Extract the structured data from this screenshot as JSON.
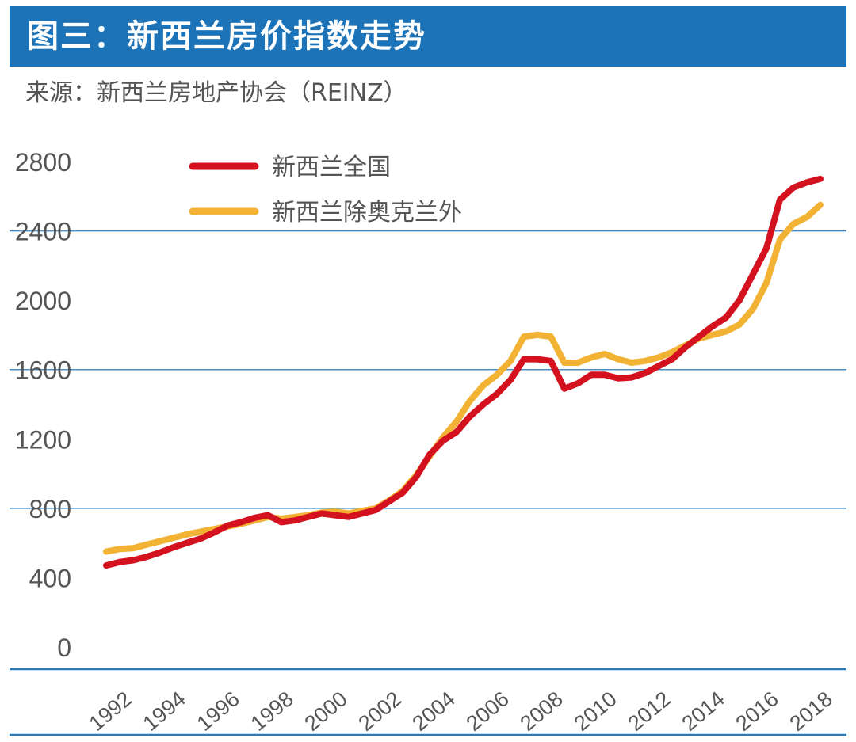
{
  "header": {
    "title": "图三：新西兰房价指数走势"
  },
  "source": "来源：新西兰房地产协会（REINZ）",
  "colors": {
    "header_bg": "#1d73b7",
    "axis": "#2a7ab8",
    "grid": "#4a8ec7",
    "national": "#d4121f",
    "excl_auckland": "#f2b233",
    "tick_text": "#555555"
  },
  "chart_data": {
    "type": "line",
    "title": "新西兰房价指数走势",
    "xlabel": "",
    "ylabel": "",
    "xlim": [
      1991.0,
      2018.3
    ],
    "ylim": [
      0,
      2800
    ],
    "y_ticks": [
      0,
      400,
      800,
      1200,
      1600,
      2000,
      2400,
      2800
    ],
    "x_ticks": [
      "1992",
      "1994",
      "1996",
      "1998",
      "2000",
      "2002",
      "2004",
      "2006",
      "2008",
      "2010",
      "2012",
      "2014",
      "2016",
      "2018"
    ],
    "gridlines_at": [
      800,
      1600,
      2400
    ],
    "legend_position": "top-left",
    "series": [
      {
        "name": "新西兰全国",
        "color": "#d4121f",
        "x": [
          1991.5,
          1992,
          1992.5,
          1993,
          1993.5,
          1994,
          1994.5,
          1995,
          1995.5,
          1996,
          1996.5,
          1997,
          1997.5,
          1998,
          1998.5,
          1999,
          1999.5,
          2000,
          2000.5,
          2001,
          2001.5,
          2002,
          2002.5,
          2003,
          2003.5,
          2004,
          2004.5,
          2005,
          2005.5,
          2006,
          2006.5,
          2007,
          2007.5,
          2008,
          2008.5,
          2009,
          2009.5,
          2010,
          2010.5,
          2011,
          2011.5,
          2012,
          2012.5,
          2013,
          2013.5,
          2014,
          2014.5,
          2015,
          2015.5,
          2016,
          2016.5,
          2017,
          2017.5,
          2018
        ],
        "values": [
          470,
          490,
          500,
          520,
          545,
          575,
          600,
          625,
          660,
          700,
          720,
          745,
          760,
          720,
          730,
          750,
          770,
          760,
          750,
          770,
          790,
          840,
          890,
          980,
          1110,
          1190,
          1240,
          1330,
          1400,
          1460,
          1540,
          1660,
          1660,
          1650,
          1490,
          1520,
          1570,
          1570,
          1550,
          1555,
          1580,
          1620,
          1660,
          1730,
          1790,
          1850,
          1900,
          2000,
          2150,
          2300,
          2580,
          2650,
          2680,
          2700
        ]
      },
      {
        "name": "新西兰除奥克兰外",
        "color": "#f2b233",
        "x": [
          1991.5,
          1992,
          1992.5,
          1993,
          1993.5,
          1994,
          1994.5,
          1995,
          1995.5,
          1996,
          1996.5,
          1997,
          1997.5,
          1998,
          1998.5,
          1999,
          1999.5,
          2000,
          2000.5,
          2001,
          2001.5,
          2002,
          2002.5,
          2003,
          2003.5,
          2004,
          2004.5,
          2005,
          2005.5,
          2006,
          2006.5,
          2007,
          2007.5,
          2008,
          2008.5,
          2009,
          2009.5,
          2010,
          2010.5,
          2011,
          2011.5,
          2012,
          2012.5,
          2013,
          2013.5,
          2014,
          2014.5,
          2015,
          2015.5,
          2016,
          2016.5,
          2017,
          2017.5,
          2018
        ],
        "values": [
          550,
          565,
          570,
          590,
          610,
          630,
          650,
          665,
          680,
          695,
          710,
          730,
          750,
          740,
          750,
          760,
          775,
          780,
          770,
          785,
          800,
          845,
          900,
          990,
          1100,
          1210,
          1300,
          1420,
          1510,
          1570,
          1650,
          1790,
          1800,
          1790,
          1640,
          1640,
          1670,
          1690,
          1660,
          1640,
          1650,
          1670,
          1700,
          1740,
          1780,
          1800,
          1820,
          1860,
          1950,
          2100,
          2350,
          2440,
          2480,
          2550
        ]
      }
    ]
  }
}
